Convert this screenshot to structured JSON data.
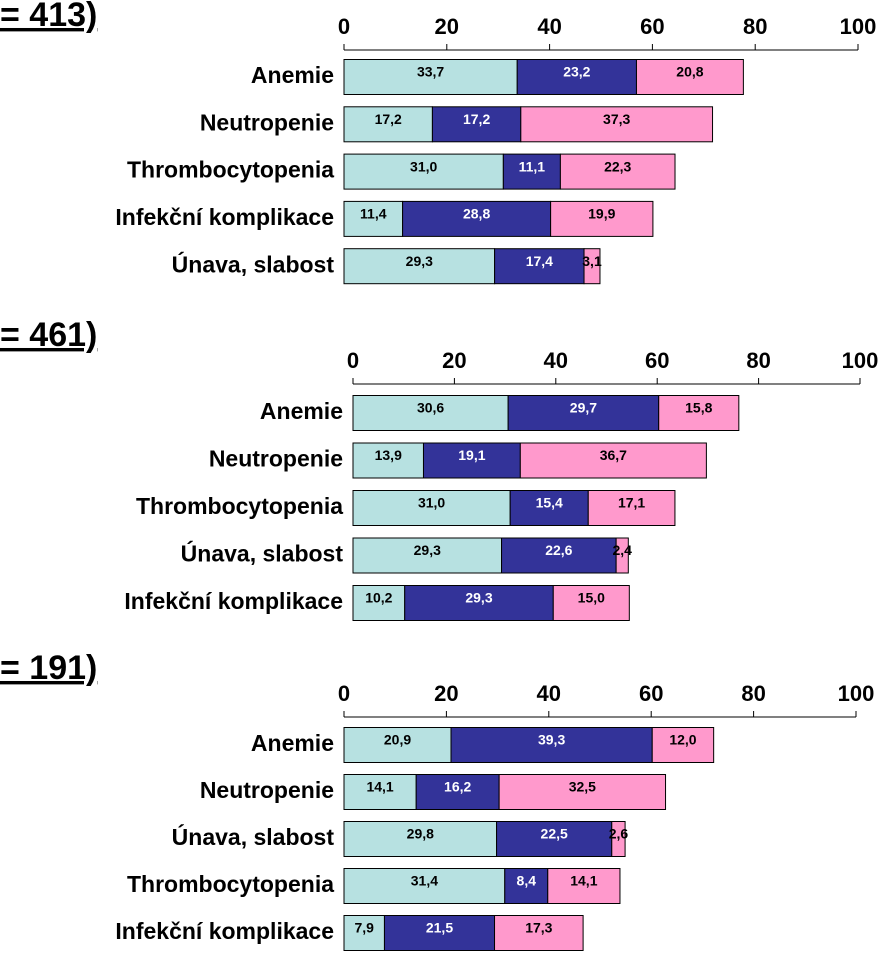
{
  "chart_data": [
    {
      "type": "bar",
      "title": "= 413)",
      "categories": [
        "Anemie",
        "Neutropenie",
        "Thrombocytopenia",
        "Infekční komplikace",
        "Únava, slabost"
      ],
      "series": [
        {
          "color": "#b7e1e1",
          "values": [
            33.7,
            17.2,
            31.0,
            11.4,
            29.3
          ],
          "value_labels": [
            "33,7",
            "17,2",
            "31,0",
            "11,4",
            "29,3"
          ]
        },
        {
          "color": "#333399",
          "values": [
            23.2,
            17.2,
            11.1,
            28.8,
            17.4
          ],
          "value_labels": [
            "23,2",
            "17,2",
            "11,1",
            "28,8",
            "17,4"
          ]
        },
        {
          "color": "#ff99cc",
          "values": [
            20.8,
            37.3,
            22.3,
            19.9,
            3.1
          ],
          "value_labels": [
            "20,8",
            "37,3",
            "22,3",
            "19,9",
            "3,1"
          ]
        }
      ],
      "xlim": [
        0,
        100
      ],
      "xticks": [
        0,
        20,
        40,
        60,
        80,
        100
      ],
      "stacked": true
    },
    {
      "type": "bar",
      "title": "= 461)",
      "categories": [
        "Anemie",
        "Neutropenie",
        "Thrombocytopenia",
        "Únava, slabost",
        "Infekční komplikace"
      ],
      "series": [
        {
          "color": "#b7e1e1",
          "values": [
            30.6,
            13.9,
            31.0,
            29.3,
            10.2
          ],
          "value_labels": [
            "30,6",
            "13,9",
            "31,0",
            "29,3",
            "10,2"
          ]
        },
        {
          "color": "#333399",
          "values": [
            29.7,
            19.1,
            15.4,
            22.6,
            29.3
          ],
          "value_labels": [
            "29,7",
            "19,1",
            "15,4",
            "22,6",
            "29,3"
          ]
        },
        {
          "color": "#ff99cc",
          "values": [
            15.8,
            36.7,
            17.1,
            2.4,
            15.0
          ],
          "value_labels": [
            "15,8",
            "36,7",
            "17,1",
            "2,4",
            "15,0"
          ]
        }
      ],
      "xlim": [
        0,
        100
      ],
      "xticks": [
        0,
        20,
        40,
        60,
        80,
        100
      ],
      "stacked": true
    },
    {
      "type": "bar",
      "title": "= 191)",
      "categories": [
        "Anemie",
        "Neutropenie",
        "Únava, slabost",
        "Thrombocytopenia",
        "Infekční komplikace"
      ],
      "series": [
        {
          "color": "#b7e1e1",
          "values": [
            20.9,
            14.1,
            29.8,
            31.4,
            7.9
          ],
          "value_labels": [
            "20,9",
            "14,1",
            "29,8",
            "31,4",
            "7,9"
          ]
        },
        {
          "color": "#333399",
          "values": [
            39.3,
            16.2,
            22.5,
            8.4,
            21.5
          ],
          "value_labels": [
            "39,3",
            "16,2",
            "22,5",
            "8,4",
            "21,5"
          ]
        },
        {
          "color": "#ff99cc",
          "values": [
            12.0,
            32.5,
            2.6,
            14.1,
            17.3
          ],
          "value_labels": [
            "12,0",
            "32,5",
            "2,6",
            "14,1",
            "17,3"
          ]
        }
      ],
      "xlim": [
        0,
        100
      ],
      "xticks": [
        0,
        20,
        40,
        60,
        80,
        100
      ],
      "stacked": true
    }
  ]
}
